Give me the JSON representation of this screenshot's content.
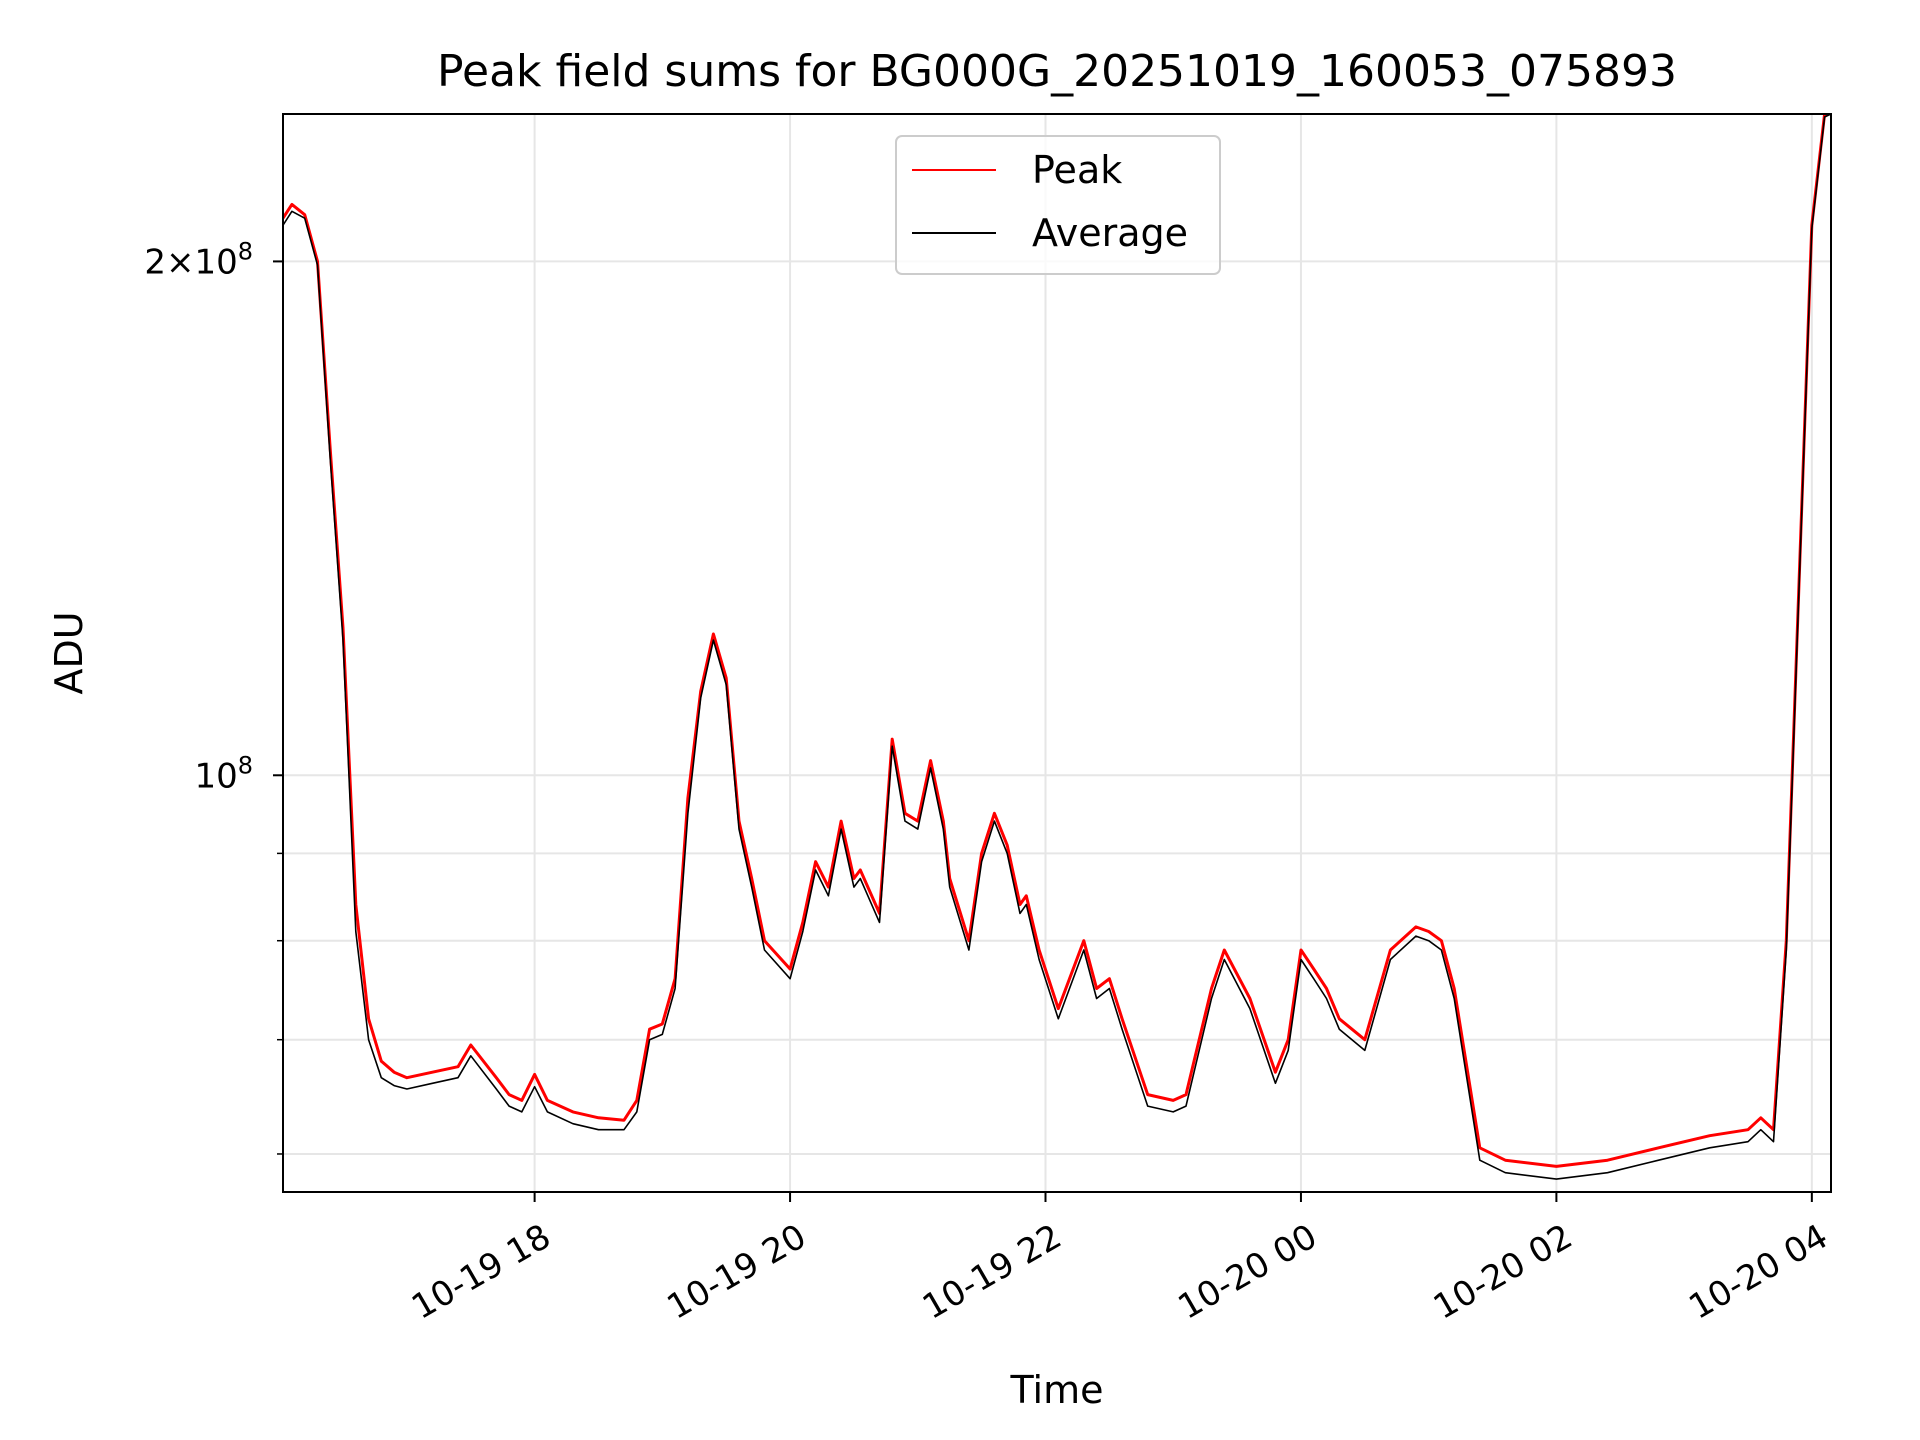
{
  "chart_data": {
    "type": "line",
    "title": "Peak field sums for BG000G_20251019_160053_075893",
    "xlabel": "Time",
    "ylabel": "ADU",
    "y_scale": "log",
    "xlim_hours": [
      16.03,
      28.15
    ],
    "ylim": [
      57000000,
      244000000
    ],
    "grid": true,
    "legend_position": "upper center",
    "x_ticks": [
      {
        "value": 18,
        "label": "10-19 18"
      },
      {
        "value": 20,
        "label": "10-19 20"
      },
      {
        "value": 22,
        "label": "10-19 22"
      },
      {
        "value": 24,
        "label": "10-20 00"
      },
      {
        "value": 26,
        "label": "10-20 02"
      },
      {
        "value": 28,
        "label": "10-20 04"
      }
    ],
    "y_major_ticks": [
      {
        "value": 100000000,
        "label": "10",
        "exp": "8"
      },
      {
        "value": 200000000,
        "label": "2×10",
        "exp": "8"
      }
    ],
    "y_minor_ticks": [
      60000000,
      70000000,
      80000000,
      90000000
    ],
    "x_hours": [
      16.03,
      16.1,
      16.2,
      16.3,
      16.4,
      16.5,
      16.6,
      16.7,
      16.8,
      16.9,
      17.0,
      17.2,
      17.4,
      17.5,
      17.7,
      17.8,
      17.9,
      18.0,
      18.1,
      18.3,
      18.5,
      18.7,
      18.8,
      18.9,
      19.0,
      19.1,
      19.2,
      19.3,
      19.4,
      19.5,
      19.6,
      19.7,
      19.8,
      20.0,
      20.1,
      20.2,
      20.3,
      20.4,
      20.5,
      20.55,
      20.7,
      20.8,
      20.9,
      21.0,
      21.1,
      21.2,
      21.25,
      21.4,
      21.5,
      21.6,
      21.7,
      21.8,
      21.85,
      21.95,
      22.1,
      22.3,
      22.4,
      22.5,
      22.6,
      22.8,
      23.0,
      23.1,
      23.3,
      23.4,
      23.6,
      23.8,
      23.9,
      24.0,
      24.1,
      24.2,
      24.3,
      24.5,
      24.7,
      24.9,
      25.0,
      25.1,
      25.2,
      25.4,
      25.6,
      26.0,
      26.4,
      26.8,
      27.2,
      27.5,
      27.6,
      27.7,
      27.8,
      27.9,
      28.0,
      28.1,
      28.15
    ],
    "series": [
      {
        "name": "Peak",
        "color": "#ff0000",
        "values": [
          212000000,
          216000000,
          213000000,
          200000000,
          155000000,
          122000000,
          84000000,
          72000000,
          68000000,
          67000000,
          66500000,
          67000000,
          67500000,
          69500000,
          66500000,
          65000000,
          64500000,
          66800000,
          64500000,
          63500000,
          63000000,
          62800000,
          64500000,
          71000000,
          71500000,
          76000000,
          97000000,
          112000000,
          121000000,
          114000000,
          94000000,
          87000000,
          80000000,
          77000000,
          82000000,
          89000000,
          86000000,
          94000000,
          87000000,
          88000000,
          83000000,
          105000000,
          95000000,
          94000000,
          102000000,
          94000000,
          87000000,
          80000000,
          90000000,
          95000000,
          91000000,
          84000000,
          85000000,
          79000000,
          73000000,
          80000000,
          75000000,
          76000000,
          72000000,
          65000000,
          64500000,
          65000000,
          75000000,
          79000000,
          74000000,
          67000000,
          70000000,
          79000000,
          77000000,
          75000000,
          72000000,
          70000000,
          79000000,
          81500000,
          81000000,
          80000000,
          75000000,
          60500000,
          59500000,
          59000000,
          59500000,
          60500000,
          61500000,
          62000000,
          63000000,
          62000000,
          80000000,
          130000000,
          210000000,
          244000000,
          244000000
        ]
      },
      {
        "name": "Average",
        "color": "#000000",
        "values": [
          210000000,
          214000000,
          212000000,
          199000000,
          153000000,
          120000000,
          81000000,
          70000000,
          66500000,
          65800000,
          65500000,
          66000000,
          66500000,
          68500000,
          65500000,
          64000000,
          63500000,
          65700000,
          63500000,
          62500000,
          62000000,
          62000000,
          63500000,
          70000000,
          70500000,
          75000000,
          95000000,
          111000000,
          120000000,
          113000000,
          93000000,
          86000000,
          79000000,
          76000000,
          81000000,
          88000000,
          85000000,
          93000000,
          86000000,
          87000000,
          82000000,
          104000000,
          94000000,
          93000000,
          101000000,
          93000000,
          86000000,
          79000000,
          89000000,
          94000000,
          90000000,
          83000000,
          84000000,
          78000000,
          72000000,
          79000000,
          74000000,
          75000000,
          71000000,
          64000000,
          63500000,
          64000000,
          74000000,
          78000000,
          73000000,
          66000000,
          69000000,
          78000000,
          76000000,
          74000000,
          71000000,
          69000000,
          78000000,
          80500000,
          80000000,
          79000000,
          74000000,
          59500000,
          58500000,
          58000000,
          58500000,
          59500000,
          60500000,
          61000000,
          62000000,
          61000000,
          79000000,
          129000000,
          209000000,
          243000000,
          244000000
        ]
      }
    ]
  }
}
